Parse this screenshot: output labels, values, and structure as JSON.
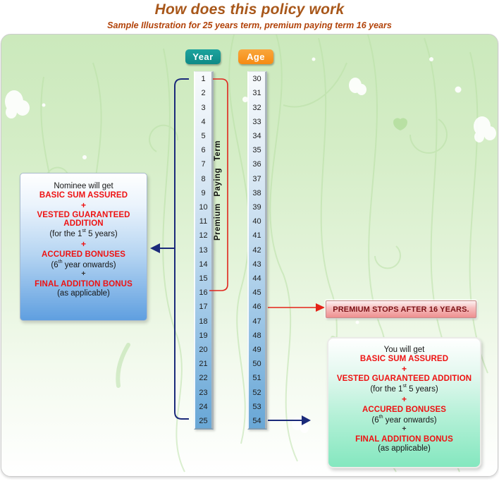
{
  "header": {
    "title": "How does this policy work",
    "subtitle": "Sample Illustration for 25 years term, premium paying term 16 years"
  },
  "diagram": {
    "year_badge": "Year",
    "age_badge": "Age",
    "years": [
      "1",
      "2",
      "3",
      "4",
      "5",
      "6",
      "7",
      "8",
      "9",
      "10",
      "11",
      "12",
      "13",
      "14",
      "15",
      "16",
      "17",
      "18",
      "19",
      "20",
      "21",
      "22",
      "23",
      "24",
      "25"
    ],
    "ages": [
      "30",
      "31",
      "32",
      "33",
      "34",
      "35",
      "36",
      "37",
      "38",
      "39",
      "40",
      "41",
      "42",
      "43",
      "44",
      "45",
      "46",
      "47",
      "48",
      "49",
      "50",
      "51",
      "52",
      "53",
      "54"
    ],
    "premium_term_label": "Premium Paying Term",
    "premium_stops_label": "PREMIUM STOPS AFTER 16 YEARS."
  },
  "nominee_box": {
    "intro": "Nominee will get",
    "benefit1": "BASIC SUM ASSURED",
    "plus1": "+",
    "benefit2": "VESTED GUARANTEED ADDITION",
    "note2_pre": "(for the 1",
    "note2_sup": "st",
    "note2_post": " 5 years)",
    "plus2": "+",
    "benefit3": "ACCURED BONUSES",
    "note3_pre": "(6",
    "note3_sup": "th",
    "note3_post": " year onwards)",
    "plus3": "+",
    "benefit4": "FINAL ADDITION BONUS",
    "note4": "(as applicable)"
  },
  "you_box": {
    "intro": "You will get",
    "benefit1": "BASIC SUM ASSURED",
    "plus1": "+",
    "benefit2": "VESTED GUARANTEED ADDITION",
    "note2_pre": "(for the 1",
    "note2_sup": "st",
    "note2_post": " 5 years)",
    "plus2": "+",
    "benefit3": "ACCURED BONUSES",
    "note3_pre": "(6",
    "note3_sup": "th",
    "note3_post": " year onwards)",
    "plus3": "+",
    "benefit4": "FINAL ADDITION BONUS",
    "note4": "(as applicable)"
  },
  "colors": {
    "title_text": "#a8571a",
    "subtitle_text": "#b2430a",
    "year_badge": "#0e8a86",
    "age_badge": "#f68b12",
    "benefit_red": "#ee1212",
    "navy_connector": "#1b2a7a",
    "red_connector": "#e42318",
    "premium_stops_text": "#7c1216",
    "panel_green": "#d4edc6",
    "strip_blue": "#74aeda"
  }
}
